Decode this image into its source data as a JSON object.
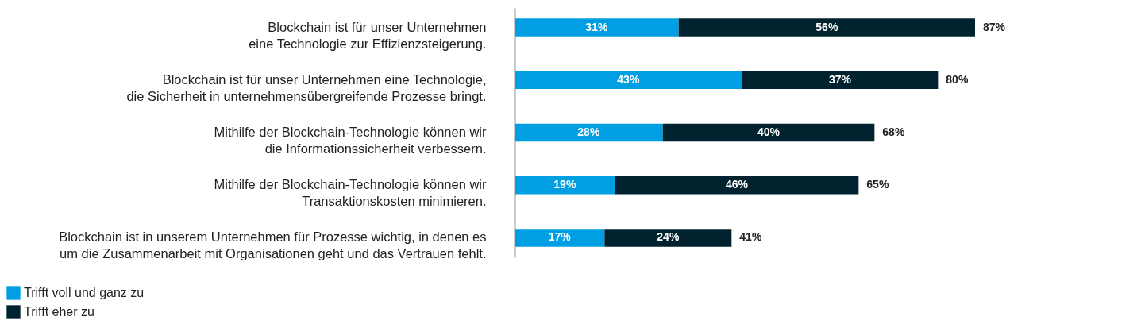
{
  "chart_data": {
    "type": "bar",
    "orientation": "horizontal",
    "stacked": true,
    "categories": [
      "Blockchain ist für unser Unternehmen\neine Technologie zur Effizienzsteigerung.",
      "Blockchain ist für unser Unternehmen eine Technologie,\ndie Sicherheit in unternehmensübergreifende Prozesse bringt.",
      "Mithilfe der Blockchain-Technologie können wir\ndie Informationssicherheit verbessern.",
      "Mithilfe der Blockchain-Technologie können wir\nTransaktionskosten minimieren.",
      "Blockchain ist in unserem Unternehmen für Prozesse wichtig, in denen es\num die Zusammenarbeit mit Organisationen geht und das Vertrauen fehlt."
    ],
    "series": [
      {
        "name": "Trifft voll und ganz zu",
        "color": "#009fe3",
        "values": [
          31,
          43,
          28,
          19,
          17
        ],
        "value_labels": [
          "31%",
          "43%",
          "28%",
          "19%",
          "17%"
        ]
      },
      {
        "name": "Trifft eher zu",
        "color": "#00222e",
        "values": [
          56,
          37,
          40,
          46,
          24
        ],
        "value_labels": [
          "56%",
          "37%",
          "40%",
          "46%",
          "24%"
        ]
      }
    ],
    "totals": [
      "87%",
      "80%",
      "68%",
      "65%",
      "41%"
    ],
    "legend": "bottom left",
    "grid": false
  }
}
